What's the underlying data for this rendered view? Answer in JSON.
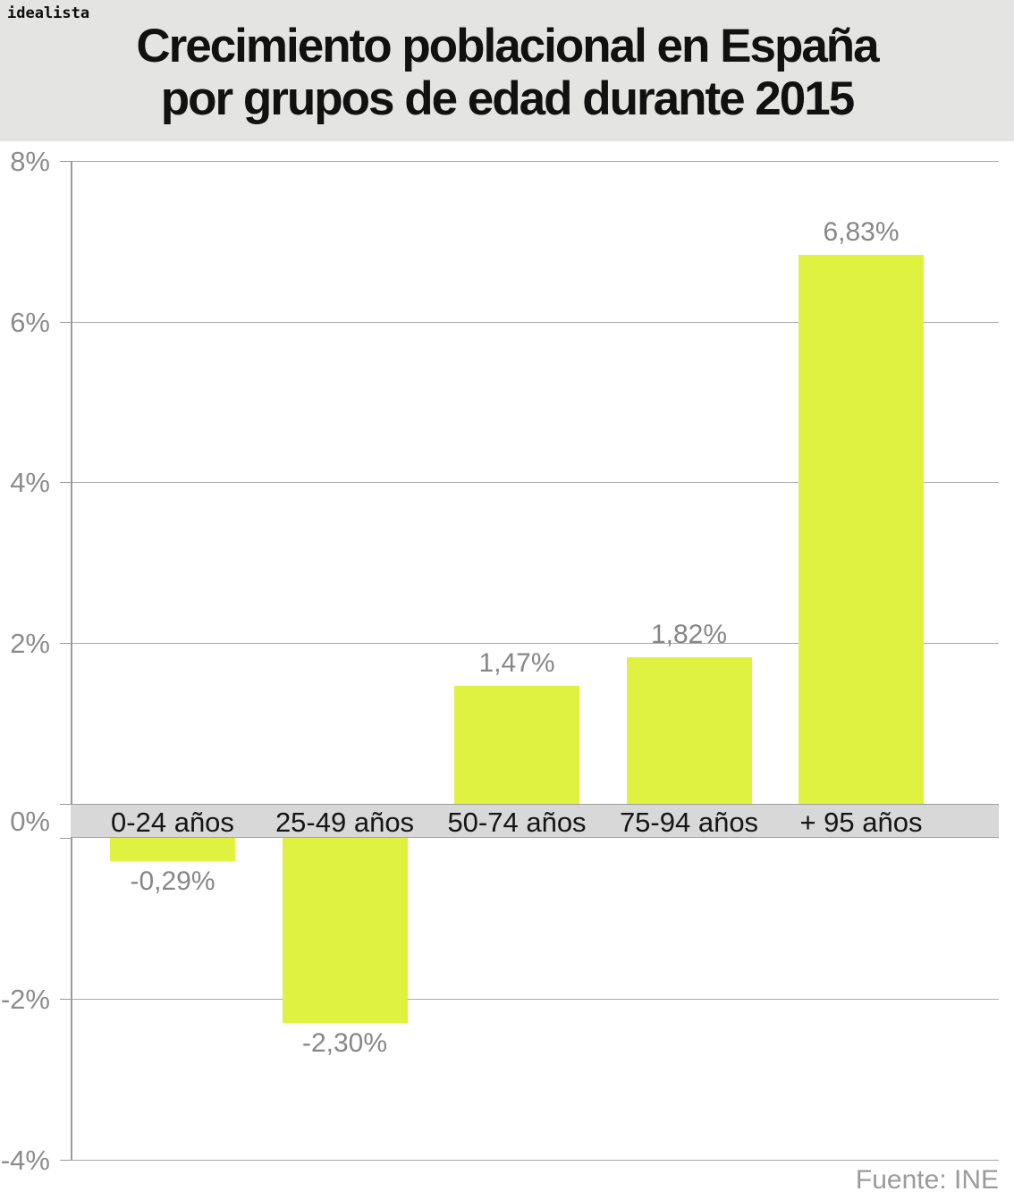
{
  "brand": {
    "logo_text": "idealista"
  },
  "header": {
    "title_line1": "Crecimiento poblacional en España",
    "title_line2": "por grupos de edad durante 2015"
  },
  "footer": {
    "source": "Fuente: INE"
  },
  "colors": {
    "header_bg": "#e4e4e3",
    "bar": "#def23f",
    "zero_band": "#d8d8d8",
    "gridline": "#a9a9a9",
    "axis_label": "#8c8c8c",
    "value_label": "#878787",
    "category_label": "#151515",
    "source_label": "#9b9b9b"
  },
  "chart_data": {
    "type": "bar",
    "title": "Crecimiento poblacional en España por grupos de edad durante 2015",
    "categories": [
      "0-24 años",
      "25-49 años",
      "50-74 años",
      "75-94 años",
      "+ 95 años"
    ],
    "values": [
      -0.29,
      -2.3,
      1.47,
      1.82,
      6.83
    ],
    "value_labels": [
      "-0,29%",
      "-2,30%",
      "1,47%",
      "1,82%",
      "6,83%"
    ],
    "xlabel": "",
    "ylabel": "",
    "ylim": [
      -4,
      8
    ],
    "ytick_step": 2,
    "yticks": [
      8,
      6,
      4,
      2,
      0,
      -2,
      -4
    ],
    "ytick_labels": [
      "8%",
      "6%",
      "4%",
      "2%",
      "0%",
      "-2%",
      "-4%"
    ],
    "grid": true,
    "legend": false,
    "zero_band": true,
    "source": "Fuente: INE"
  }
}
